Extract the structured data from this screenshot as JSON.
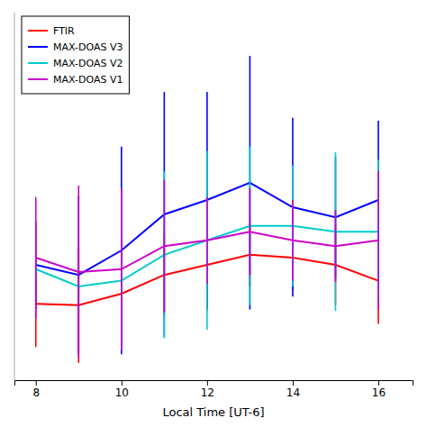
{
  "chart_data": {
    "type": "line",
    "xlabel": "Local Time [UT-6]",
    "x": [
      8,
      9,
      10,
      11,
      12,
      13,
      14,
      15,
      16
    ],
    "series": [
      {
        "name": "FTIR",
        "color": "#ff0000",
        "values": [
          0.28,
          0.27,
          0.35,
          0.48,
          0.55,
          0.62,
          0.6,
          0.55,
          0.44
        ],
        "error": [
          0.3,
          0.4,
          0.38,
          0.28,
          0.32,
          0.22,
          0.23,
          0.28,
          0.3
        ]
      },
      {
        "name": "MAX-DOAS V3",
        "color": "#0000ff",
        "values": [
          0.55,
          0.48,
          0.65,
          0.9,
          1.0,
          1.12,
          0.95,
          0.88,
          1.0
        ],
        "error": [
          0.3,
          0.55,
          0.72,
          0.85,
          0.75,
          0.88,
          0.62,
          0.42,
          0.55
        ]
      },
      {
        "name": "MAX-DOAS V2",
        "color": "#00cccc",
        "values": [
          0.52,
          0.4,
          0.44,
          0.62,
          0.72,
          0.82,
          0.82,
          0.78,
          0.78
        ],
        "error": [
          0.08,
          0.08,
          0.1,
          0.58,
          0.62,
          0.55,
          0.42,
          0.55,
          0.5
        ]
      },
      {
        "name": "MAX-DOAS V1",
        "color": "#cc00cc",
        "values": [
          0.6,
          0.5,
          0.52,
          0.68,
          0.72,
          0.78,
          0.72,
          0.68,
          0.72
        ],
        "error": [
          0.42,
          0.6,
          0.56,
          0.46,
          0.3,
          0.3,
          0.28,
          0.25,
          0.48
        ]
      }
    ],
    "xticks": [
      8,
      10,
      12,
      14,
      16
    ],
    "xlim": [
      7.5,
      16.8
    ],
    "ylim": [
      -0.25,
      2.3
    ],
    "tick_labels": "x",
    "grid": false,
    "legend": "upper left"
  }
}
